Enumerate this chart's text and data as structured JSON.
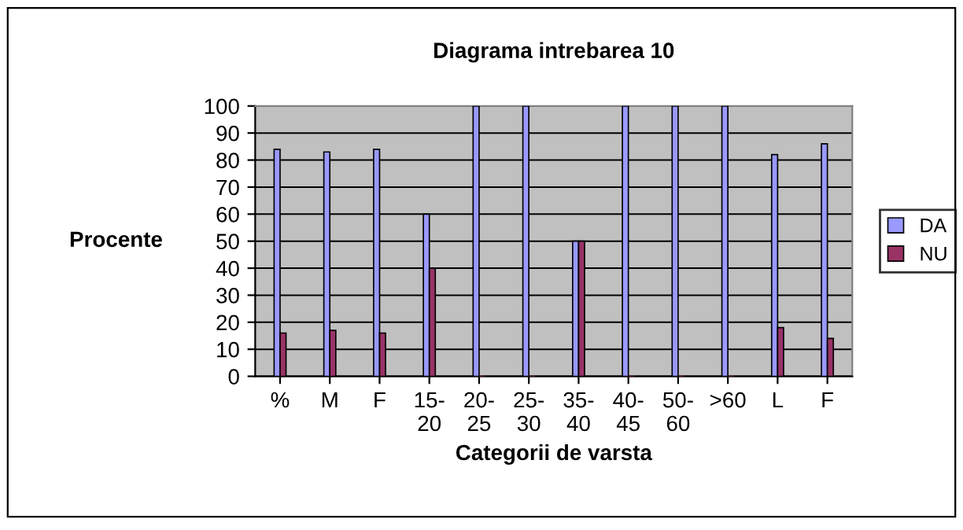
{
  "chart_data": {
    "type": "bar",
    "title": "Diagrama intrebarea 10",
    "xlabel": "Categorii de varsta",
    "ylabel": "Procente",
    "categories": [
      "%",
      "M",
      "F",
      "15-\n20",
      "20-\n25",
      "25-\n30",
      "35-\n40",
      "40-\n45",
      "50-\n60",
      ">60",
      "L",
      "F"
    ],
    "series": [
      {
        "name": "DA",
        "color": "#9999ff",
        "values": [
          84,
          83,
          84,
          60,
          100,
          100,
          50,
          100,
          100,
          100,
          82,
          86
        ]
      },
      {
        "name": "NU",
        "color": "#993366",
        "values": [
          16,
          17,
          16,
          40,
          0,
          0,
          50,
          0,
          0,
          0,
          18,
          14
        ]
      }
    ],
    "ylim": [
      0,
      100
    ],
    "yticks": [
      0,
      10,
      20,
      30,
      40,
      50,
      60,
      70,
      80,
      90,
      100
    ],
    "grid": "y",
    "legend": "right"
  }
}
